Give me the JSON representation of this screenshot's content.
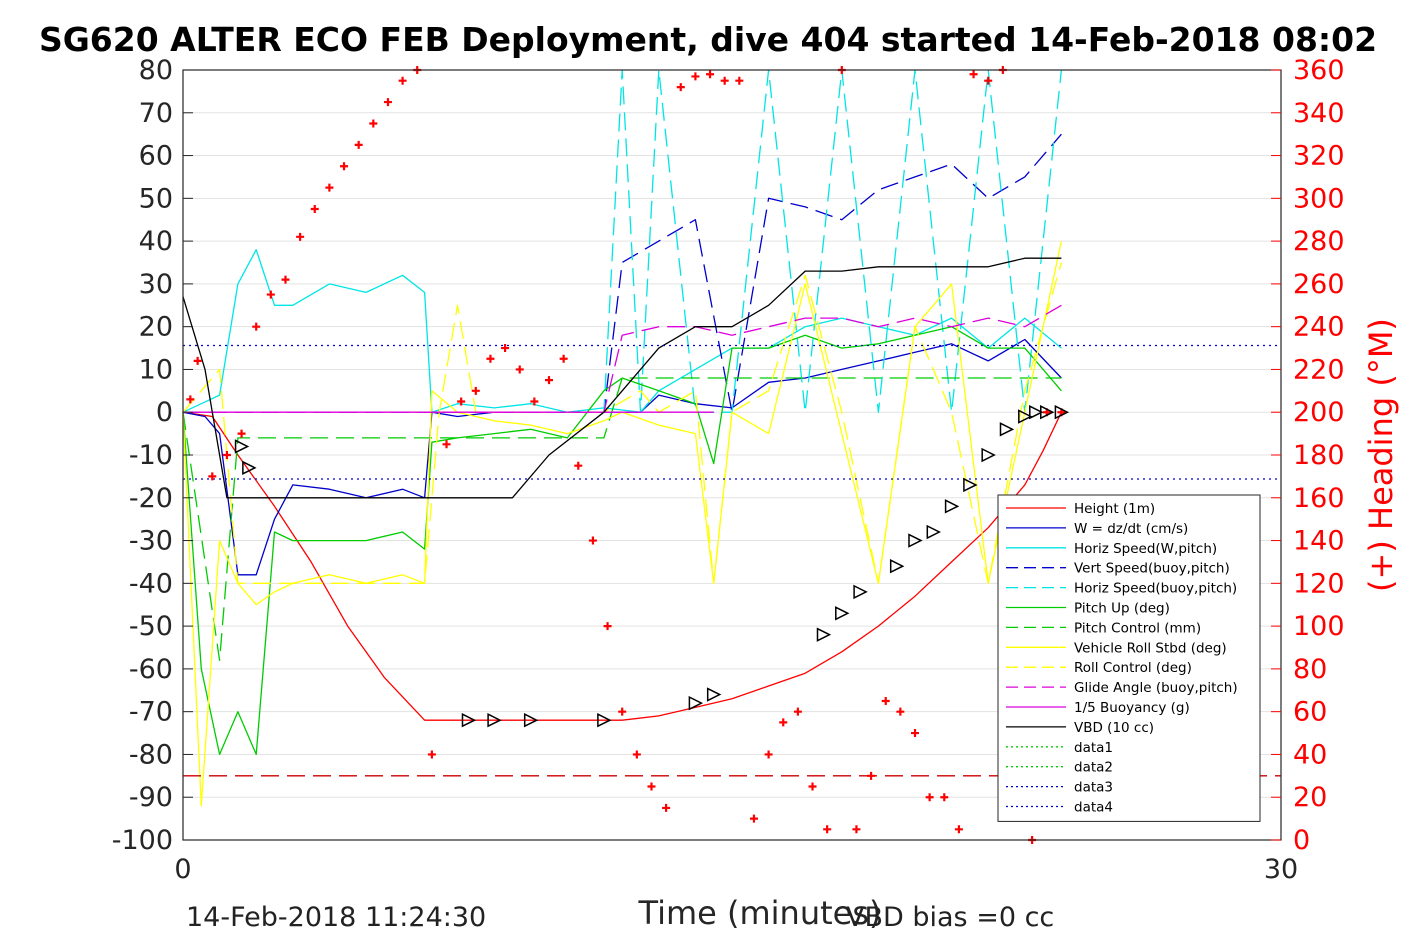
{
  "chart_data": {
    "type": "line",
    "title": "SG620 ALTER ECO FEB Deployment, dive 404 started 14-Feb-2018 08:02",
    "xlabel": "Time (minutes)",
    "ylabel_right": "(+) Heading (°M)",
    "xlim": [
      0,
      30
    ],
    "ylim_left": [
      -100,
      80
    ],
    "ylim_right": [
      0,
      360
    ],
    "x_ticks": [
      0,
      30
    ],
    "y_ticks_left": [
      80,
      70,
      60,
      50,
      40,
      30,
      20,
      10,
      0,
      -10,
      -20,
      -30,
      -40,
      -50,
      -60,
      -70,
      -80,
      -90,
      -100
    ],
    "y_ticks_right": [
      360,
      340,
      320,
      300,
      280,
      260,
      240,
      220,
      200,
      180,
      160,
      140,
      120,
      100,
      80,
      60,
      40,
      20,
      0
    ],
    "grid": true,
    "legend_position": "bottom-right",
    "footer_left": "14-Feb-2018 11:24:30",
    "footer_right": "VBD bias =0 cc",
    "series": [
      {
        "name": "Height (1m)",
        "color": "#ff0000",
        "style": "solid",
        "x": [
          0,
          0.8,
          1.5,
          2.5,
          3.5,
          4.5,
          5.5,
          6.6,
          7.0,
          8.0,
          9.0,
          10.0,
          11.0,
          12.0,
          13.0,
          14.0,
          15.0,
          16.0,
          17.0,
          18.0,
          19.0,
          20.0,
          21.0,
          22.0,
          23.0,
          23.5,
          24.0
        ],
        "values": [
          0,
          -1,
          -10,
          -22,
          -35,
          -50,
          -62,
          -72,
          -72,
          -72,
          -72,
          -72,
          -72,
          -72,
          -71,
          -69,
          -67,
          -64,
          -61,
          -56,
          -50,
          -43,
          -35,
          -27,
          -17,
          -9,
          0
        ]
      },
      {
        "name": "W = dz/dt (cm/s)",
        "color": "#0000cc",
        "style": "solid",
        "x": [
          0,
          0.6,
          1.0,
          1.5,
          2.0,
          2.5,
          3.0,
          4.0,
          5.0,
          6.0,
          6.6,
          6.8,
          7.5,
          8.5,
          9.5,
          10.5,
          11.5,
          12.5,
          13.0,
          14.0,
          15.0,
          16.0,
          17.0,
          18.0,
          19.0,
          20.0,
          21.0,
          22.0,
          23.0,
          24.0
        ],
        "values": [
          0,
          -1,
          -5,
          -38,
          -38,
          -25,
          -17,
          -18,
          -20,
          -18,
          -20,
          0,
          -1,
          0,
          0,
          0,
          0,
          0,
          4,
          2,
          1,
          7,
          8,
          10,
          12,
          14,
          16,
          12,
          17,
          8
        ]
      },
      {
        "name": "Horiz Speed(W,pitch)",
        "color": "#00e5e5",
        "style": "solid",
        "x": [
          0,
          0.5,
          1.0,
          1.5,
          2.0,
          2.5,
          3.0,
          4.0,
          5.0,
          6.0,
          6.6,
          6.8,
          7.5,
          8.5,
          9.5,
          10.5,
          11.5,
          12.5,
          13.0,
          14.0,
          15.0,
          16.0,
          17.0,
          18.0,
          19.0,
          20.0,
          21.0,
          22.0,
          23.0,
          24.0
        ],
        "values": [
          0,
          2,
          4,
          30,
          38,
          25,
          25,
          30,
          28,
          32,
          28,
          0,
          2,
          1,
          2,
          0,
          1,
          0,
          5,
          10,
          15,
          15,
          20,
          22,
          20,
          18,
          22,
          15,
          22,
          15
        ]
      },
      {
        "name": "Vert Speed(buoy,pitch)",
        "color": "#0000cc",
        "style": "dashed",
        "x": [
          0,
          11.5,
          12.0,
          13.0,
          14.0,
          15.0,
          16.0,
          17.0,
          18.0,
          19.0,
          20.0,
          21.0,
          22.0,
          23.0,
          24.0
        ],
        "values": [
          0,
          0,
          35,
          40,
          45,
          0,
          50,
          48,
          45,
          52,
          55,
          58,
          50,
          55,
          65
        ]
      },
      {
        "name": "Horiz Speed(buoy,pitch)",
        "color": "#00e5e5",
        "style": "dashed",
        "x": [
          0,
          11.5,
          12.0,
          12.5,
          13.0,
          14.0,
          15.0,
          16.0,
          17.0,
          18.0,
          19.0,
          20.0,
          21.0,
          22.0,
          23.0,
          24.0
        ],
        "values": [
          0,
          0,
          80,
          0,
          80,
          0,
          0,
          80,
          0,
          80,
          0,
          80,
          0,
          80,
          0,
          80
        ]
      },
      {
        "name": "Pitch Up (deg)",
        "color": "#00cc00",
        "style": "solid",
        "x": [
          0,
          0.5,
          1.0,
          1.5,
          2.0,
          2.5,
          3.0,
          4.0,
          5.0,
          6.0,
          6.6,
          6.8,
          7.5,
          8.5,
          9.5,
          10.5,
          11.5,
          12.0,
          13.0,
          14.0,
          14.5,
          15.0,
          16.0,
          17.0,
          18.0,
          19.0,
          20.0,
          21.0,
          22.0,
          23.0,
          24.0
        ],
        "values": [
          0,
          -60,
          -80,
          -70,
          -80,
          -28,
          -30,
          -30,
          -30,
          -28,
          -32,
          -7,
          -6,
          -5,
          -4,
          -6,
          5,
          8,
          5,
          2,
          -12,
          15,
          15,
          18,
          15,
          16,
          18,
          20,
          15,
          15,
          5
        ]
      },
      {
        "name": "Pitch Control (mm)",
        "color": "#00cc00",
        "style": "dashed",
        "x": [
          0,
          1.0,
          1.5,
          6.8,
          7.0,
          11.5,
          12.0,
          14.5,
          15.0,
          24.0
        ],
        "values": [
          0,
          -58,
          -6,
          -6,
          -6,
          -6,
          8,
          8,
          8,
          8
        ]
      },
      {
        "name": "Vehicle Roll Stbd (deg)",
        "color": "#ffff00",
        "style": "solid",
        "x": [
          0,
          0.5,
          1.0,
          1.5,
          2.0,
          2.5,
          3.0,
          4.0,
          5.0,
          6.0,
          6.6,
          6.8,
          7.5,
          8.5,
          9.5,
          10.5,
          11.5,
          12.0,
          13.0,
          14.0,
          14.5,
          15.0,
          16.0,
          17.0,
          18.0,
          19.0,
          20.0,
          21.0,
          22.0,
          23.0,
          24.0
        ],
        "values": [
          0,
          -92,
          -30,
          -40,
          -45,
          -42,
          -40,
          -38,
          -40,
          -38,
          -40,
          5,
          0,
          -2,
          -3,
          -5,
          -2,
          0,
          -3,
          -5,
          -40,
          0,
          -5,
          30,
          -5,
          -40,
          20,
          30,
          -40,
          0,
          40
        ]
      },
      {
        "name": "Roll Control (deg)",
        "color": "#ffff00",
        "style": "dashed",
        "x": [
          0,
          1.0,
          1.5,
          6.6,
          7.0,
          7.5,
          8.0,
          11.5,
          12.5,
          13.0,
          14.0,
          14.5,
          15.0,
          16.0,
          17.0,
          18.0,
          19.0,
          20.0,
          21.0,
          22.0,
          23.0,
          24.0
        ],
        "values": [
          0,
          10,
          -40,
          -40,
          0,
          25,
          0,
          0,
          5,
          0,
          5,
          -40,
          0,
          5,
          32,
          0,
          -40,
          20,
          0,
          -40,
          5,
          35
        ]
      },
      {
        "name": "Glide Angle (buoy,pitch)",
        "color": "#dd00dd",
        "style": "dashed",
        "x": [
          0,
          11.5,
          12.0,
          13.0,
          14.0,
          15.0,
          16.0,
          17.0,
          18.0,
          19.0,
          20.0,
          21.0,
          22.0,
          23.0,
          24.0
        ],
        "values": [
          0,
          0,
          18,
          20,
          20,
          18,
          20,
          22,
          22,
          20,
          22,
          20,
          22,
          20,
          25
        ]
      },
      {
        "name": "1/5 Buoyancy (g)",
        "color": "#dd00dd",
        "style": "solid",
        "x": [
          0,
          14.5
        ],
        "values": [
          0,
          0
        ]
      },
      {
        "name": "VBD (10 cc)",
        "color": "#000000",
        "style": "solid",
        "x": [
          0,
          0.6,
          1.0,
          1.2,
          1.5,
          5.0,
          6.6,
          8.0,
          9.0,
          10.0,
          11.5,
          12.0,
          13.0,
          14.0,
          15.0,
          16.0,
          17.0,
          18.0,
          19.0,
          20.0,
          21.0,
          22.0,
          23.0,
          24.0
        ],
        "values": [
          27,
          10,
          -10,
          -20,
          -20,
          -20,
          -20,
          -20,
          -20,
          -10,
          0,
          5,
          15,
          20,
          20,
          25,
          33,
          33,
          34,
          34,
          34,
          34,
          36,
          36
        ]
      },
      {
        "name": "data1",
        "color": "#00cc00",
        "style": "dotted",
        "x": [],
        "values": []
      },
      {
        "name": "data2",
        "color": "#00cc00",
        "style": "dotted",
        "x": [],
        "values": []
      },
      {
        "name": "data3",
        "color": "#0000cc",
        "style": "dotted",
        "x": [
          0,
          30
        ],
        "values": [
          15.6,
          15.6
        ]
      },
      {
        "name": "data4",
        "color": "#0000cc",
        "style": "dotted",
        "x": [
          0,
          30
        ],
        "values": [
          -15.6,
          -15.6
        ]
      },
      {
        "name": "",
        "color": "#cc0000",
        "style": "dashed",
        "x": [
          0,
          30
        ],
        "values": [
          -85,
          -85
        ]
      }
    ],
    "heading_points": {
      "axis": "right",
      "color": "#ff0000",
      "marker": "+",
      "x": [
        0.2,
        0.4,
        0.8,
        1.2,
        1.6,
        2.0,
        2.4,
        2.8,
        3.2,
        3.6,
        4.0,
        4.4,
        4.8,
        5.2,
        5.6,
        6.0,
        6.4,
        6.8,
        7.2,
        7.6,
        8.0,
        8.4,
        8.8,
        9.2,
        9.6,
        10.0,
        10.4,
        10.8,
        11.2,
        11.6,
        12.0,
        12.4,
        12.8,
        13.2,
        13.6,
        14.0,
        14.4,
        14.8,
        15.2,
        15.6,
        16.0,
        16.4,
        16.8,
        17.2,
        17.6,
        18.0,
        18.4,
        18.8,
        19.2,
        19.6,
        20.0,
        20.4,
        20.8,
        21.2,
        21.6,
        22.0,
        22.4,
        22.8,
        23.2,
        23.6,
        24.0
      ],
      "values": [
        206,
        224,
        170,
        180,
        190,
        240,
        255,
        262,
        282,
        295,
        305,
        315,
        325,
        335,
        345,
        355,
        360,
        40,
        185,
        205,
        210,
        225,
        230,
        220,
        205,
        215,
        225,
        175,
        140,
        100,
        60,
        40,
        25,
        15,
        352,
        357,
        358,
        355,
        355,
        10,
        40,
        55,
        60,
        25,
        5,
        360,
        5,
        30,
        65,
        60,
        50,
        20,
        20,
        5,
        358,
        355,
        360,
        15,
        0,
        200,
        200
      ]
    },
    "markers": {
      "axis": "left",
      "color": "#000000",
      "x": [
        1.6,
        1.8,
        7.8,
        8.5,
        9.5,
        11.5,
        14.0,
        14.5,
        17.5,
        18.0,
        18.5,
        19.5,
        20.0,
        20.5,
        21.0,
        21.5,
        22.0,
        22.5,
        23.0,
        23.3,
        23.6,
        24.0
      ],
      "values": [
        -8,
        -13,
        -72,
        -72,
        -72,
        -72,
        -68,
        -66,
        -52,
        -47,
        -42,
        -36,
        -30,
        -28,
        -22,
        -17,
        -10,
        -4,
        -1,
        0,
        0,
        0
      ]
    }
  }
}
